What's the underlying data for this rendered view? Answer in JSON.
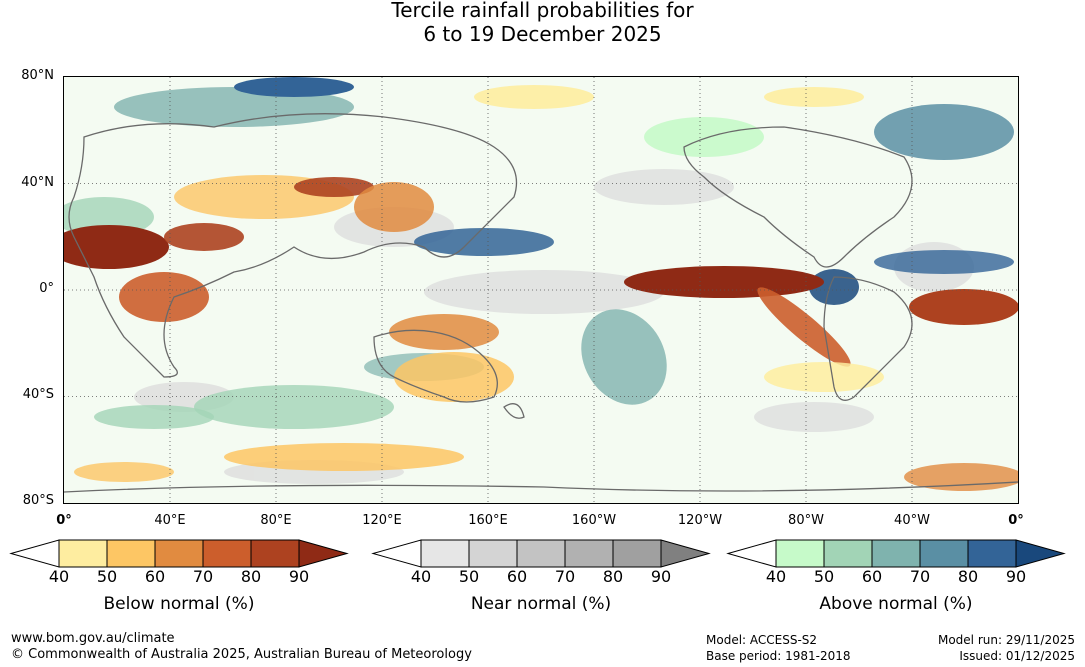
{
  "title": {
    "line1": "Tercile rainfall probabilities for",
    "line2": "6 to 19 December 2025"
  },
  "map": {
    "lat_labels": [
      "80°N",
      "40°N",
      "0°",
      "40°S",
      "80°S"
    ],
    "lon_labels": [
      "0°",
      "40°E",
      "80°E",
      "120°E",
      "160°E",
      "160°W",
      "120°W",
      "80°W",
      "40°W",
      "0°"
    ]
  },
  "colorbars": [
    {
      "id": "below",
      "title": "Below normal (%)",
      "ticks": [
        "40",
        "50",
        "60",
        "70",
        "80",
        "90"
      ],
      "colors": [
        "#ffffff",
        "#feeda0",
        "#fdc664",
        "#e18b40",
        "#cc5e2c",
        "#ad4220",
        "#8f2a15"
      ]
    },
    {
      "id": "near",
      "title": "Near normal (%)",
      "ticks": [
        "40",
        "50",
        "60",
        "70",
        "80",
        "90"
      ],
      "colors": [
        "#ffffff",
        "#e6e6e6",
        "#d4d4d4",
        "#c3c3c3",
        "#b1b1b1",
        "#a0a0a0",
        "#808080"
      ]
    },
    {
      "id": "above",
      "title": "Above normal (%)",
      "ticks": [
        "40",
        "50",
        "60",
        "70",
        "80",
        "90"
      ],
      "colors": [
        "#ffffff",
        "#c6fac9",
        "#a2d4b6",
        "#7fb3ae",
        "#5a8fa4",
        "#336497",
        "#19487c"
      ]
    }
  ],
  "footer": {
    "website": "www.bom.gov.au/climate",
    "copyright": "© Commonwealth of Australia 2025, Australian Bureau of Meteorology",
    "model": "Model: ACCESS-S2",
    "base_period": "Base period: 1981-2018",
    "model_run": "Model run: 29/11/2025",
    "issued": "Issued: 01/12/2025"
  }
}
